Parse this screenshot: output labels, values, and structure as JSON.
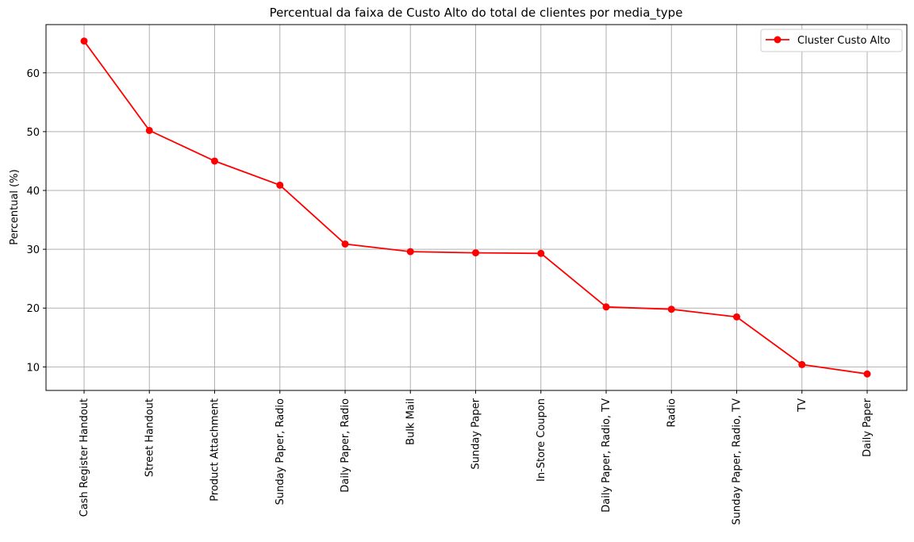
{
  "chart_data": {
    "type": "line",
    "title": "Percentual da faixa de Custo Alto do total de clientes por media_type",
    "xlabel": "",
    "ylabel": "Percentual (%)",
    "categories": [
      "Cash Register Handout",
      "Street Handout",
      "Product Attachment",
      "Sunday Paper, Radio",
      "Daily Paper, Radio",
      "Bulk Mail",
      "Sunday Paper",
      "In-Store Coupon",
      "Daily Paper, Radio, TV",
      "Radio",
      "Sunday Paper, Radio, TV",
      "TV",
      "Daily Paper"
    ],
    "series": [
      {
        "name": "Cluster Custo Alto",
        "color": "#ff0000",
        "marker": "circle",
        "values": [
          65.4,
          50.2,
          45.0,
          40.9,
          30.9,
          29.6,
          29.4,
          29.3,
          20.2,
          19.8,
          18.5,
          10.4,
          8.8
        ]
      }
    ],
    "ylim": [
      6.0,
      68.2
    ],
    "yticks": [
      10,
      20,
      30,
      40,
      50,
      60
    ],
    "grid": true,
    "legend_position": "top-right"
  }
}
